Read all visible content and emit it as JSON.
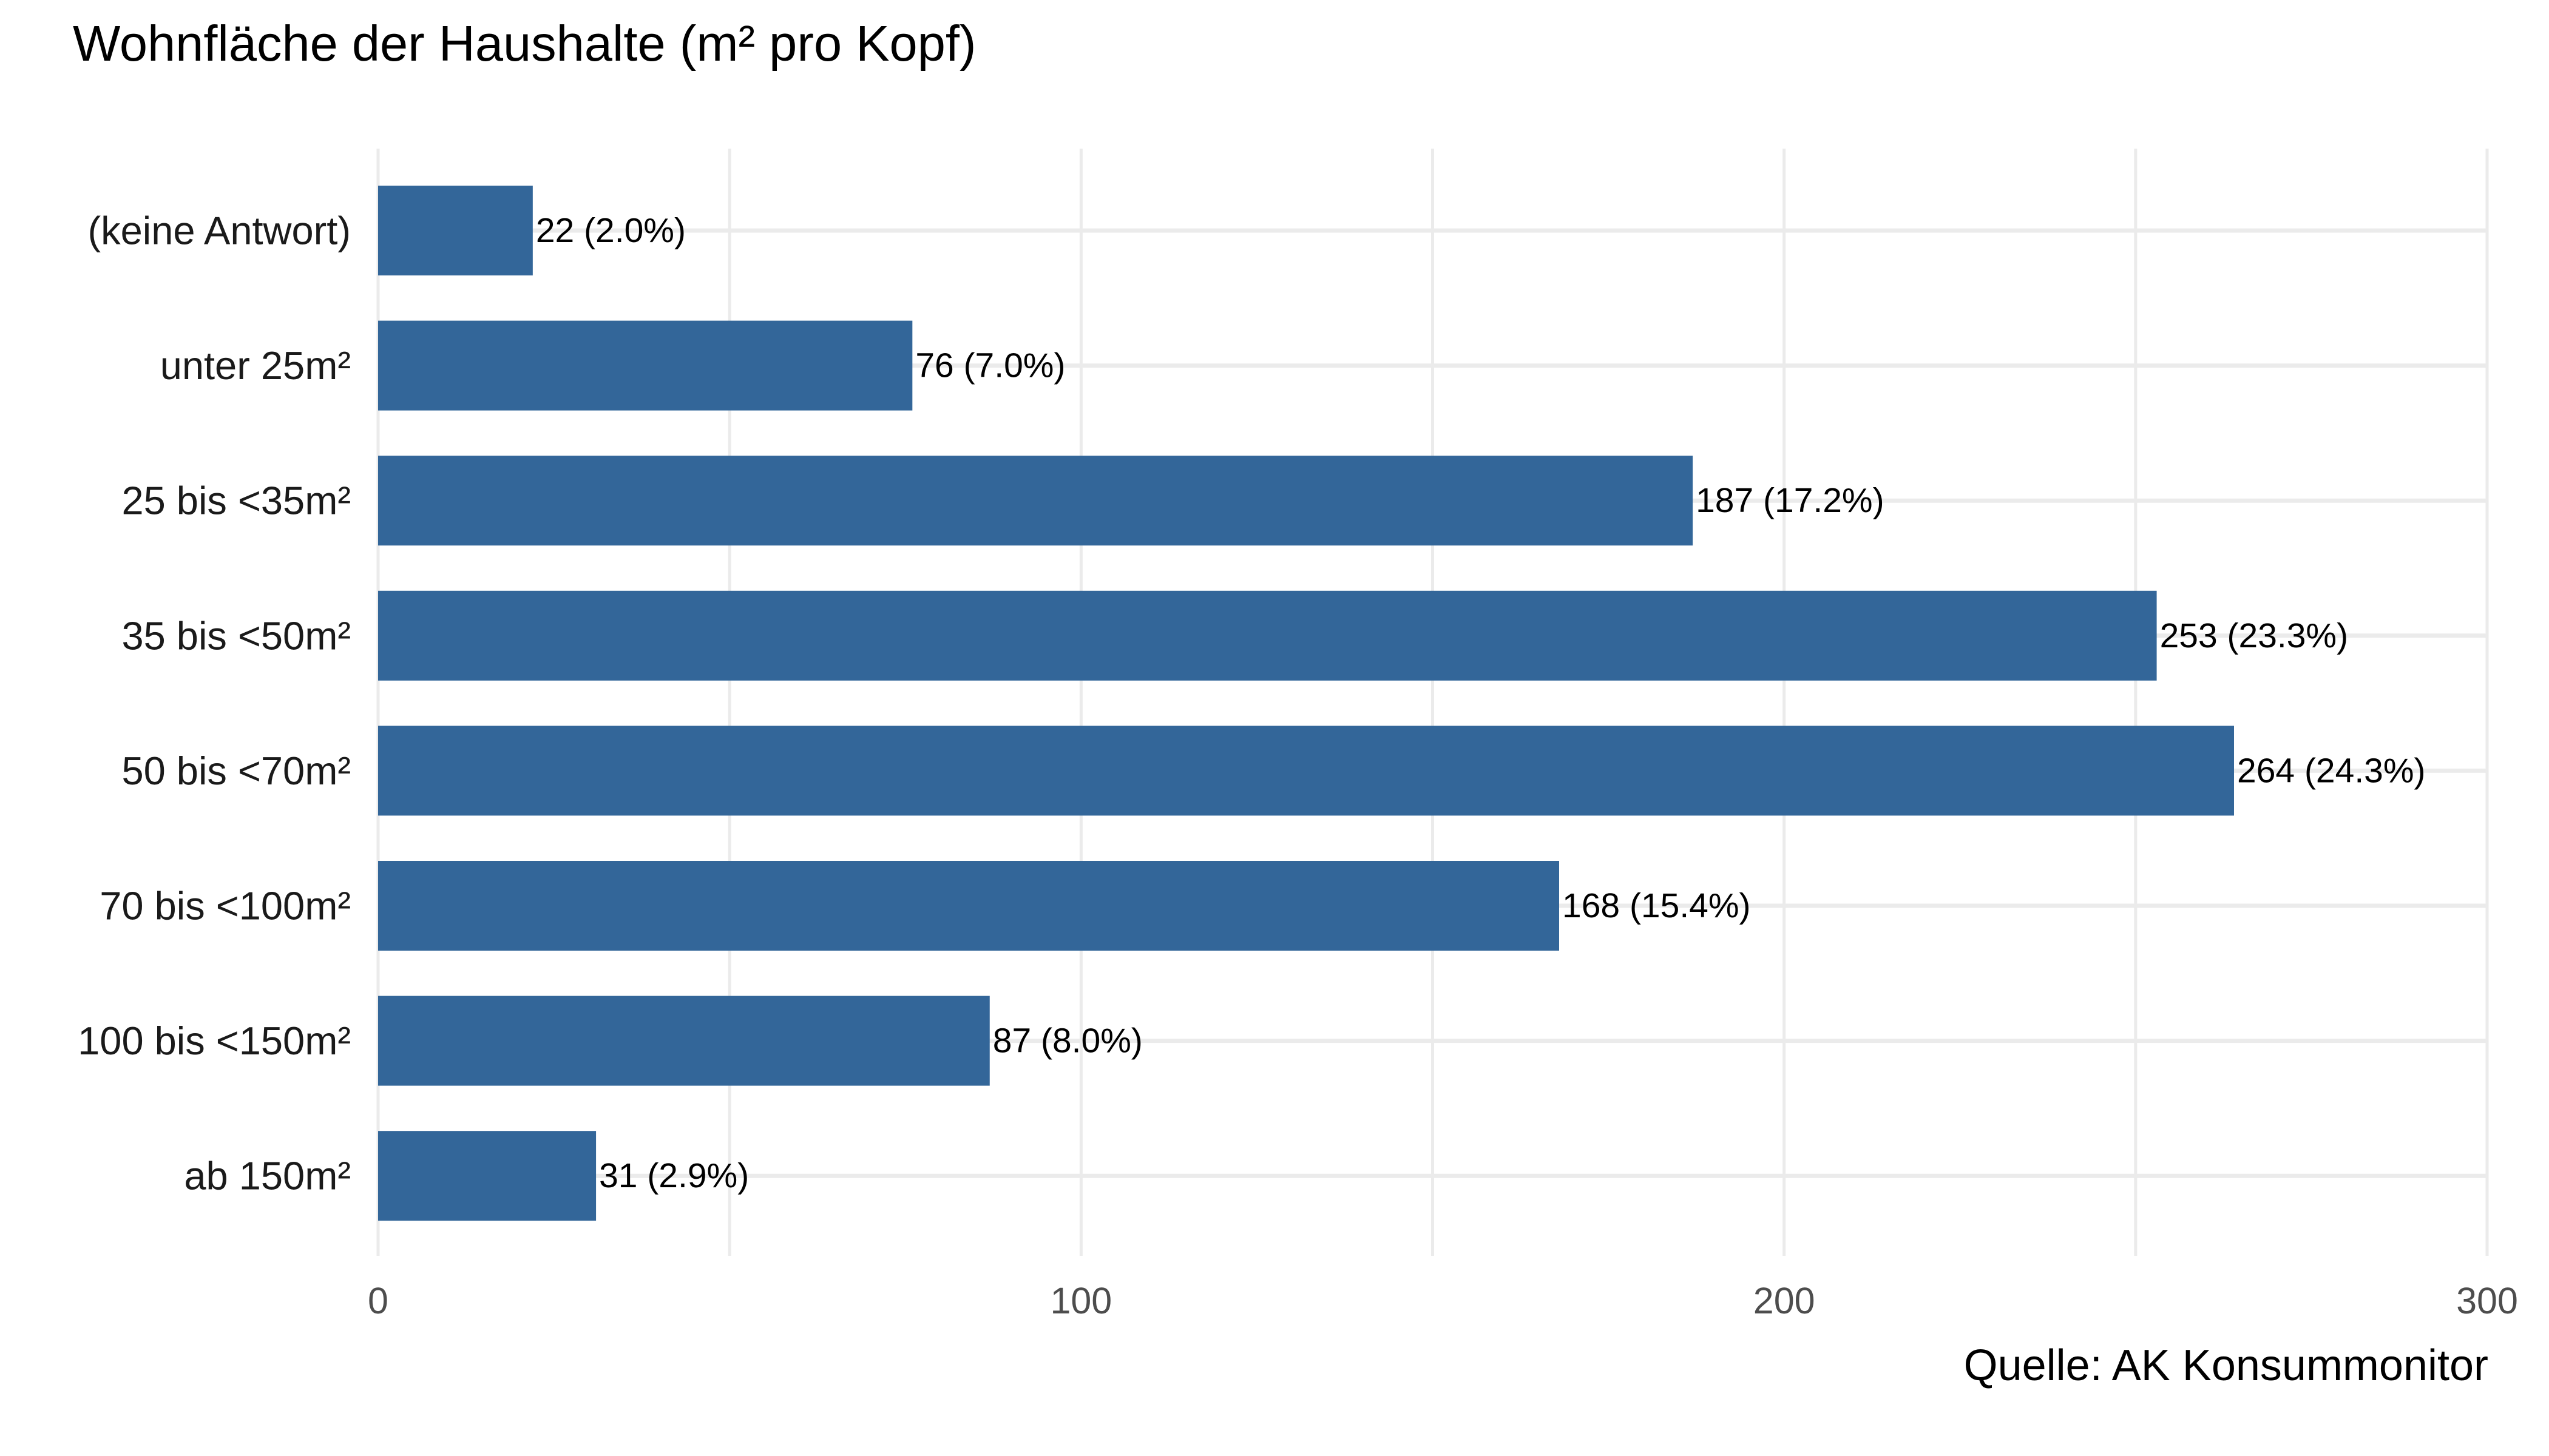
{
  "chart_data": {
    "type": "bar",
    "orientation": "horizontal",
    "title": "Wohnfläche der Haushalte (m² pro Kopf)",
    "caption": "Quelle: AK Konsummonitor",
    "categories": [
      "(keine Antwort)",
      "unter 25m²",
      "25 bis <35m²",
      "35 bis <50m²",
      "50 bis <70m²",
      "70 bis <100m²",
      "100 bis <150m²",
      "ab 150m²"
    ],
    "values": [
      22,
      76,
      187,
      253,
      264,
      168,
      87,
      31
    ],
    "value_labels": [
      "22 (2.0%)",
      "76 (7.0%)",
      "187 (17.2%)",
      "253 (23.3%)",
      "264 (24.3%)",
      "168 (15.4%)",
      "87 (8.0%)",
      "31 (2.9%)"
    ],
    "xlim": [
      0,
      300
    ],
    "xticks": [
      0,
      100,
      200,
      300
    ],
    "xlabel": "",
    "ylabel": "",
    "grid": true,
    "bar_color": "#336699",
    "grid_color": "#ebebeb"
  }
}
